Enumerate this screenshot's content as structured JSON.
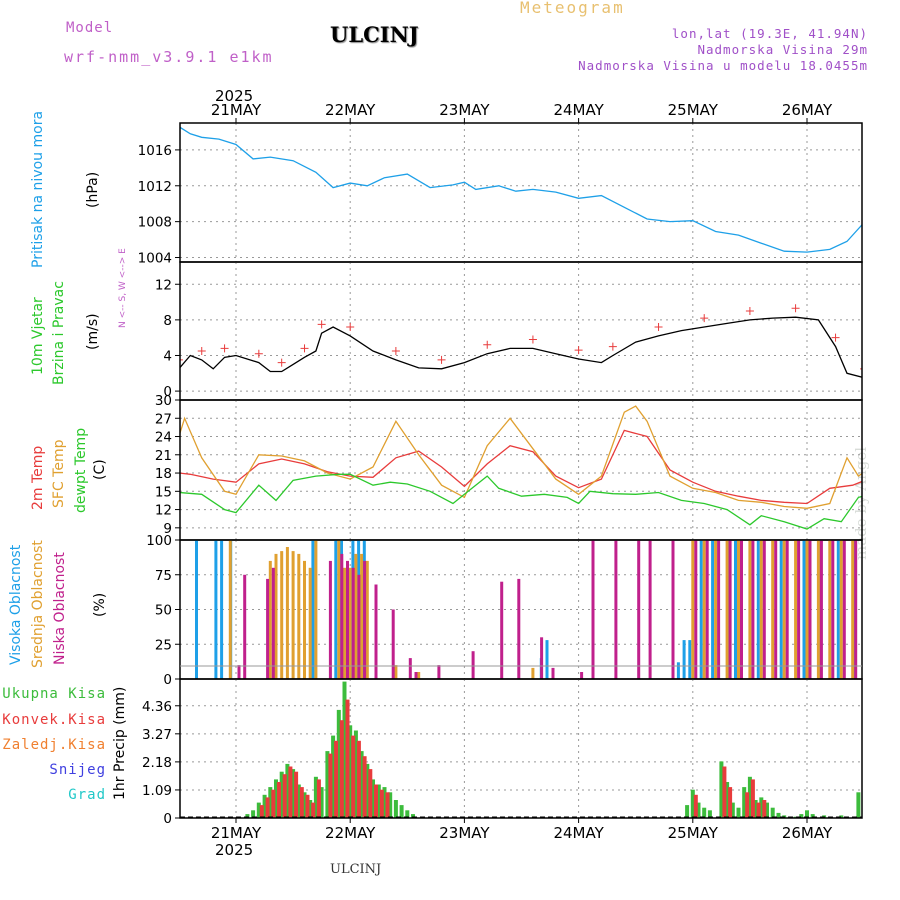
{
  "header": {
    "model_label": "Model",
    "model_name": "wrf-nmm_v3.9.1 e1km",
    "station": "ULCINJ",
    "meteogram": "Meteogram",
    "lonlat": "lon,lat (19.3E, 41.94N)",
    "altitude": "Nadmorska Visina 29m",
    "model_altitude": "Nadmorska Visina u modelu 18.0455m",
    "year": "2025",
    "watermark": "made by Angel",
    "bottom_station": "ULCINJ"
  },
  "colors": {
    "pressure": "#1ea0e8",
    "temp2m": "#e83c3c",
    "sfc": "#e0a030",
    "dewpt": "#2cc82c",
    "high_cloud": "#1ea0e8",
    "mid_cloud": "#e0a030",
    "low_cloud": "#c0208c",
    "precip_total": "#3cbc3c",
    "precip_conv": "#e83c3c",
    "precip_frozen": "#f08030",
    "snow": "#4040e0",
    "graupel": "#20c8c8",
    "wind_speed": "#000000",
    "wind_gust": "#e83c3c"
  },
  "chart_data": [
    {
      "type": "line",
      "panel": "pressure",
      "ylabel_title": "Pritisak na nivou mora",
      "unit": "(hPa)",
      "x_unit": "day (2025-05-21 00h = 0)",
      "x_ticks": [
        "21MAY",
        "22MAY",
        "23MAY",
        "24MAY",
        "25MAY",
        "26MAY"
      ],
      "yticks": [
        1004,
        1008,
        1012,
        1016
      ],
      "ylim": [
        1003.5,
        1019
      ],
      "series": [
        {
          "name": "Pritisak na nivou mora",
          "x": [
            -0.5,
            -0.4,
            -0.3,
            -0.15,
            0,
            0.15,
            0.3,
            0.5,
            0.7,
            0.85,
            1.0,
            1.15,
            1.3,
            1.5,
            1.7,
            1.9,
            2.0,
            2.1,
            2.3,
            2.45,
            2.6,
            2.8,
            3.0,
            3.2,
            3.4,
            3.6,
            3.8,
            4.0,
            4.2,
            4.4,
            4.6,
            4.8,
            5.0,
            5.2,
            5.35,
            5.5,
            5.6
          ],
          "values": [
            1018.6,
            1017.8,
            1017.4,
            1017.2,
            1016.6,
            1015.0,
            1015.2,
            1014.8,
            1013.5,
            1011.8,
            1012.3,
            1012.0,
            1012.9,
            1013.3,
            1011.8,
            1012.1,
            1012.4,
            1011.6,
            1012.0,
            1011.4,
            1011.6,
            1011.3,
            1010.6,
            1010.9,
            1009.6,
            1008.3,
            1008.0,
            1008.1,
            1006.9,
            1006.5,
            1005.6,
            1004.7,
            1004.6,
            1004.9,
            1005.8,
            1007.9,
            1009.2
          ]
        }
      ]
    },
    {
      "type": "line",
      "panel": "wind",
      "ylabel_title": "10m Vjetar",
      "ylabel_title2": "Brzina i Pravac",
      "unit": "(m/s)",
      "direction_key": "N <-- S,  W <--> E",
      "x_unit": "day (2025-05-21 00h = 0)",
      "yticks": [
        0,
        4,
        8,
        12
      ],
      "ylim": [
        -1,
        14.5
      ],
      "series": [
        {
          "name": "10m Vjetar Brzina",
          "x": [
            -0.5,
            -0.4,
            -0.3,
            -0.2,
            -0.1,
            0,
            0.2,
            0.3,
            0.4,
            0.5,
            0.6,
            0.7,
            0.75,
            0.85,
            1.0,
            1.2,
            1.4,
            1.6,
            1.8,
            2.0,
            2.2,
            2.4,
            2.6,
            2.8,
            3.0,
            3.2,
            3.3,
            3.5,
            3.7,
            3.9,
            4.1,
            4.3,
            4.5,
            4.7,
            4.9,
            5.1,
            5.25,
            5.35,
            5.5,
            5.6
          ],
          "values": [
            2.5,
            4.0,
            3.5,
            2.5,
            3.8,
            4.0,
            3.2,
            2.2,
            2.2,
            3.0,
            3.8,
            4.5,
            6.5,
            7.2,
            6.2,
            4.5,
            3.5,
            2.6,
            2.5,
            3.2,
            4.2,
            4.8,
            4.8,
            4.2,
            3.6,
            3.2,
            4.0,
            5.5,
            6.2,
            6.8,
            7.2,
            7.6,
            8.0,
            8.2,
            8.3,
            8.0,
            5.0,
            2.0,
            1.5,
            3.0
          ]
        }
      ]
    },
    {
      "type": "line",
      "panel": "temperature",
      "ylabel_titles": [
        "2m Temp",
        "SFC Temp",
        "dewpt Temp"
      ],
      "unit": "(C)",
      "x_unit": "day (2025-05-21 00h = 0)",
      "yticks": [
        9,
        12,
        15,
        18,
        21,
        24,
        27,
        30
      ],
      "ylim": [
        7,
        30
      ],
      "series": [
        {
          "name": "2m Temp",
          "x": [
            -0.5,
            -0.4,
            -0.2,
            0,
            0.2,
            0.4,
            0.6,
            0.8,
            1.0,
            1.2,
            1.4,
            1.6,
            1.8,
            2.0,
            2.2,
            2.4,
            2.6,
            2.8,
            3.0,
            3.2,
            3.4,
            3.6,
            3.8,
            4.0,
            4.2,
            4.4,
            4.6,
            4.8,
            5.0,
            5.2,
            5.4,
            5.6
          ],
          "values": [
            18,
            17.8,
            17.0,
            16.5,
            19.5,
            20.3,
            19.5,
            18.2,
            17.5,
            17.3,
            20.5,
            21.6,
            19.0,
            15.8,
            19.5,
            22.5,
            21.5,
            17.5,
            15.6,
            17.0,
            25.0,
            24.0,
            18.5,
            16.5,
            15.0,
            14.2,
            13.5,
            13.2,
            13.0,
            15.5,
            16.0,
            17.5
          ]
        },
        {
          "name": "SFC Temp",
          "x": [
            -0.5,
            -0.45,
            -0.3,
            -0.1,
            0,
            0.2,
            0.4,
            0.6,
            0.8,
            1.0,
            1.2,
            1.4,
            1.6,
            1.8,
            2.0,
            2.2,
            2.4,
            2.6,
            2.8,
            3.0,
            3.2,
            3.4,
            3.5,
            3.6,
            3.8,
            4.0,
            4.2,
            4.4,
            4.6,
            4.8,
            5.0,
            5.2,
            5.35,
            5.45,
            5.6
          ],
          "values": [
            24,
            27,
            20.5,
            15.0,
            14.5,
            21.0,
            20.8,
            20.0,
            18.0,
            17.0,
            19.0,
            26.5,
            21.0,
            16.0,
            14.0,
            22.5,
            27.0,
            22.0,
            17.0,
            14.5,
            17.5,
            28.0,
            29.0,
            26.5,
            17.5,
            15.5,
            14.8,
            13.5,
            13.2,
            12.5,
            12.2,
            13.0,
            20.5,
            17.5,
            19.5
          ]
        },
        {
          "name": "dewpt Temp",
          "x": [
            -0.5,
            -0.3,
            -0.1,
            0,
            0.2,
            0.35,
            0.5,
            0.7,
            0.9,
            1.0,
            1.2,
            1.35,
            1.5,
            1.7,
            1.9,
            2.0,
            2.2,
            2.3,
            2.5,
            2.7,
            2.9,
            3.0,
            3.1,
            3.3,
            3.5,
            3.7,
            3.9,
            4.1,
            4.3,
            4.5,
            4.6,
            4.8,
            5.0,
            5.15,
            5.3,
            5.45,
            5.6
          ],
          "values": [
            14.8,
            14.5,
            12.0,
            11.5,
            16.0,
            13.5,
            16.8,
            17.5,
            17.8,
            17.8,
            16.0,
            16.5,
            16.2,
            15.0,
            13.0,
            14.5,
            17.5,
            15.5,
            14.2,
            14.5,
            14.0,
            13.0,
            15.0,
            14.6,
            14.5,
            14.8,
            13.5,
            13.0,
            12.0,
            9.5,
            11.0,
            10.0,
            8.8,
            10.5,
            10.0,
            14.0,
            14.8
          ]
        }
      ]
    },
    {
      "type": "bar",
      "panel": "cloud",
      "ylabel_titles": [
        "Visoka Oblacnost",
        "Srednja Oblacnost",
        "Niska Oblacnost"
      ],
      "unit": "(%)",
      "x_unit": "day (2025-05-21 00h = 0)",
      "yticks": [
        0,
        25,
        50,
        75,
        100
      ],
      "ylim": [
        0,
        100
      ],
      "series": [
        {
          "name": "Visoka Oblacnost",
          "x": [
            -0.32,
            -0.15,
            -0.1,
            -0.02,
            0.7,
            0.9,
            0.95,
            1.05,
            1.1,
            1.15,
            2.7,
            2.75,
            3.9,
            3.95,
            4.0,
            4.1,
            4.2,
            4.35,
            4.4,
            4.6,
            4.8,
            5.0,
            5.15,
            5.3,
            5.45
          ],
          "values": [
            100,
            100,
            100,
            100,
            100,
            100,
            100,
            100,
            100,
            100,
            15,
            28,
            12,
            28,
            28,
            100,
            100,
            100,
            100,
            100,
            100,
            100,
            100,
            100,
            100
          ]
        },
        {
          "name": "Srednja Oblacnost",
          "x": [
            -0.05,
            0.3,
            0.35,
            0.4,
            0.45,
            0.5,
            0.55,
            0.6,
            0.65,
            0.7,
            0.9,
            0.95,
            1.0,
            1.05,
            1.1,
            1.15,
            1.4,
            1.6,
            2.6,
            4.0,
            4.1,
            4.2,
            4.3,
            4.4,
            4.5,
            4.6,
            4.7,
            4.8,
            4.9,
            5.0,
            5.1,
            5.2,
            5.3,
            5.4,
            5.5
          ],
          "values": [
            100,
            85,
            90,
            92,
            95,
            92,
            90,
            85,
            80,
            100,
            100,
            80,
            80,
            90,
            90,
            85,
            10,
            5,
            8,
            100,
            100,
            100,
            100,
            100,
            100,
            100,
            100,
            100,
            100,
            100,
            100,
            100,
            100,
            100,
            100
          ]
        },
        {
          "name": "Niska Oblacnost",
          "x": [
            0.0,
            0.05,
            0.25,
            0.3,
            0.8,
            0.9,
            0.95,
            1.0,
            1.05,
            1.1,
            1.2,
            1.35,
            1.5,
            1.55,
            1.75,
            2.05,
            2.3,
            2.45,
            2.65,
            2.75,
            3.0,
            3.1,
            3.3,
            3.5,
            3.6,
            3.8,
            4.0,
            4.1,
            4.2,
            4.3,
            4.4,
            4.5,
            4.6,
            4.7,
            4.8,
            4.9,
            5.0,
            5.1,
            5.2,
            5.3,
            5.4,
            5.5
          ],
          "values": [
            10,
            75,
            72,
            80,
            85,
            90,
            85,
            80,
            75,
            85,
            68,
            50,
            15,
            5,
            10,
            20,
            70,
            72,
            30,
            8,
            5,
            100,
            100,
            100,
            100,
            100,
            100,
            100,
            100,
            100,
            100,
            100,
            100,
            100,
            100,
            100,
            100,
            100,
            100,
            100,
            100,
            100
          ]
        }
      ]
    },
    {
      "type": "bar",
      "panel": "precip",
      "ylabel": "1hr Precip (mm)",
      "legend": [
        "Ukupna Kisa",
        "Konvek.Kisa",
        "Zaledj.Kisa",
        "Snijeg",
        "Grad"
      ],
      "x_unit": "day (2025-05-21 00h = 0)",
      "yticks": [
        0,
        1.09,
        2.18,
        3.27,
        4.36
      ],
      "ylim": [
        0,
        5.4
      ],
      "x_ticks": [
        "21MAY",
        "22MAY",
        "23MAY",
        "24MAY",
        "25MAY",
        "26MAY"
      ],
      "series": [
        {
          "name": "Ukupna Kisa",
          "x": [
            0.1,
            0.15,
            0.2,
            0.25,
            0.3,
            0.35,
            0.4,
            0.45,
            0.5,
            0.55,
            0.6,
            0.65,
            0.7,
            0.75,
            0.8,
            0.85,
            0.9,
            0.95,
            1.0,
            1.05,
            1.1,
            1.15,
            1.2,
            1.25,
            1.3,
            1.35,
            1.4,
            1.45,
            1.5,
            1.55,
            3.95,
            4.0,
            4.05,
            4.1,
            4.15,
            4.25,
            4.3,
            4.35,
            4.4,
            4.45,
            4.5,
            4.55,
            4.6,
            4.65,
            4.7,
            4.75,
            4.8,
            4.85,
            4.9,
            4.95,
            5.0,
            5.05,
            5.15,
            5.3,
            5.35,
            5.45,
            5.5
          ],
          "values": [
            0.15,
            0.3,
            0.6,
            0.9,
            1.2,
            1.5,
            1.8,
            2.1,
            1.9,
            1.3,
            1.0,
            0.7,
            1.6,
            1.2,
            2.6,
            3.2,
            4.2,
            5.3,
            3.6,
            3.4,
            2.6,
            2.1,
            1.5,
            1.3,
            1.2,
            1.0,
            0.7,
            0.5,
            0.3,
            0.15,
            0.5,
            1.1,
            0.6,
            0.4,
            0.3,
            2.2,
            1.4,
            0.6,
            0.4,
            1.2,
            1.6,
            0.7,
            0.8,
            0.6,
            0.4,
            0.2,
            0.1,
            0.05,
            0.05,
            0.15,
            0.3,
            0.15,
            0.1,
            0.1,
            0.05,
            1.0,
            0.1
          ]
        },
        {
          "name": "Konvek.Kisa",
          "x": [
            0.2,
            0.25,
            0.3,
            0.35,
            0.4,
            0.45,
            0.5,
            0.55,
            0.6,
            0.65,
            0.7,
            0.8,
            0.85,
            0.9,
            0.95,
            1.0,
            1.05,
            1.1,
            1.15,
            1.2,
            1.25,
            1.3,
            4.0,
            4.25,
            4.3,
            4.45,
            4.5,
            4.55,
            4.6
          ],
          "values": [
            0.5,
            0.8,
            1.1,
            1.4,
            1.7,
            2.0,
            1.8,
            1.2,
            0.9,
            0.6,
            1.5,
            2.5,
            3.0,
            3.8,
            4.6,
            3.2,
            3.0,
            2.4,
            1.9,
            1.3,
            1.1,
            1.0,
            0.9,
            2.0,
            1.2,
            1.0,
            1.5,
            0.6,
            0.7
          ]
        }
      ]
    }
  ]
}
